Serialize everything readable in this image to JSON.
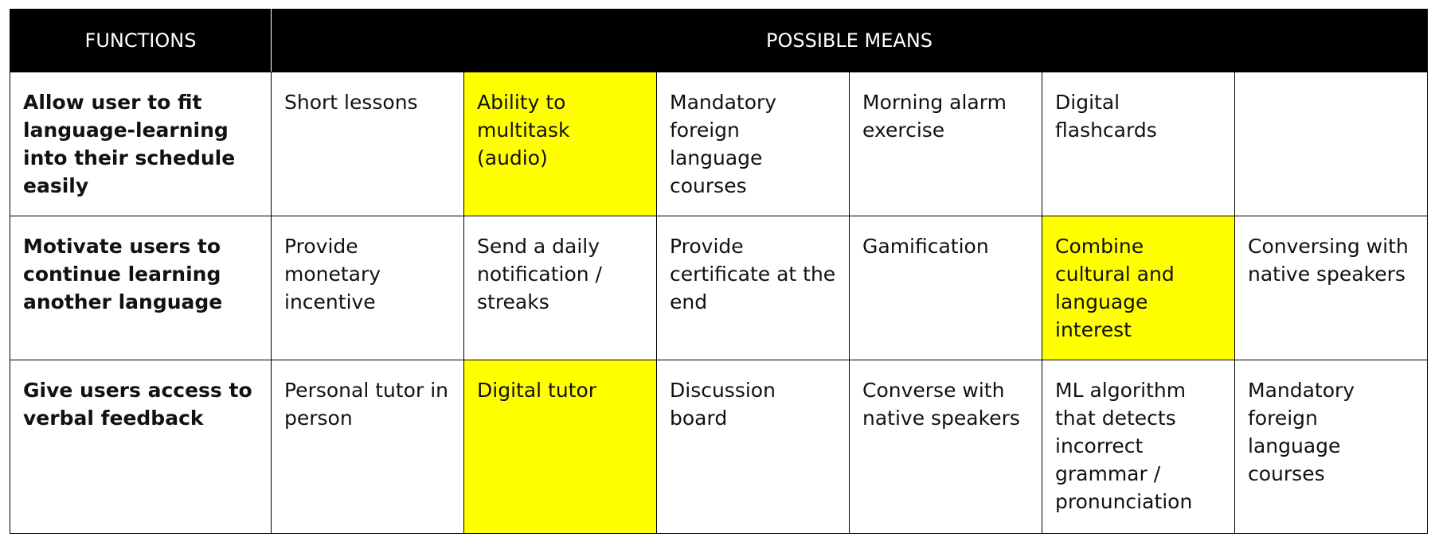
{
  "header": {
    "functions": "FUNCTIONS",
    "possible_means": "POSSIBLE MEANS"
  },
  "colors": {
    "highlight": "#ffff00",
    "header_bg": "#000000"
  },
  "rows": [
    {
      "function": "Allow user to fit language-learning into their schedule easily",
      "means": [
        {
          "text": "Short lessons",
          "highlighted": false
        },
        {
          "text": "Ability to multitask (audio)",
          "highlighted": true
        },
        {
          "text": "Mandatory foreign language courses",
          "highlighted": false
        },
        {
          "text": "Morning alarm exercise",
          "highlighted": false
        },
        {
          "text": "Digital flashcards",
          "highlighted": false
        },
        {
          "text": "",
          "highlighted": false
        }
      ]
    },
    {
      "function": "Motivate users to continue learning another language",
      "means": [
        {
          "text": "Provide monetary incentive",
          "highlighted": false
        },
        {
          "text": "Send a daily notification / streaks",
          "highlighted": false
        },
        {
          "text": "Provide certificate at the end",
          "highlighted": false
        },
        {
          "text": "Gamification",
          "highlighted": false
        },
        {
          "text": "Combine cultural and language interest",
          "highlighted": true
        },
        {
          "text": "Conversing with native speakers",
          "highlighted": false
        }
      ]
    },
    {
      "function": "Give users access to verbal feedback",
      "means": [
        {
          "text": "Personal tutor in person",
          "highlighted": false
        },
        {
          "text": "Digital tutor",
          "highlighted": true
        },
        {
          "text": "Discussion board",
          "highlighted": false
        },
        {
          "text": "Converse with native speakers",
          "highlighted": false
        },
        {
          "text": "ML algorithm that detects incorrect grammar / pronunciation",
          "highlighted": false
        },
        {
          "text": "Mandatory foreign language courses",
          "highlighted": false
        }
      ]
    }
  ]
}
